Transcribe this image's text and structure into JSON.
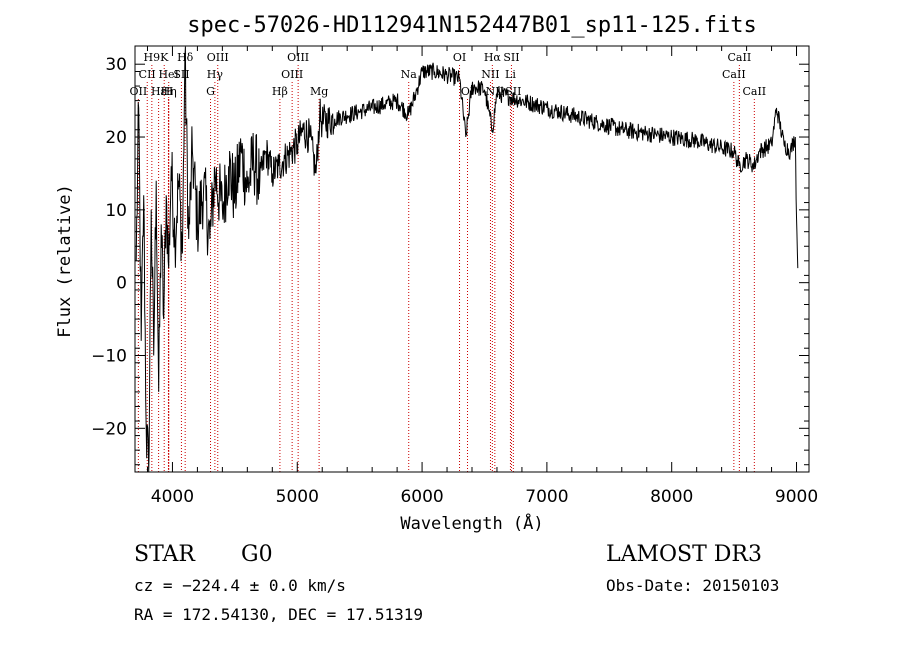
{
  "chart_data": {
    "type": "line",
    "title": "spec-57026-HD112941N152447B01_sp11-125.fits",
    "xlabel": "Wavelength (Å)",
    "ylabel": "Flux (relative)",
    "xlim": [
      3700,
      9100
    ],
    "ylim": [
      -26,
      32.5
    ],
    "xticks": [
      4000,
      5000,
      6000,
      7000,
      8000,
      9000
    ],
    "yticks": [
      -20,
      -10,
      0,
      10,
      20,
      30
    ],
    "series": [
      {
        "name": "flux",
        "x": [
          3710,
          3730,
          3750,
          3770,
          3790,
          3810,
          3830,
          3850,
          3870,
          3890,
          3910,
          3930,
          3950,
          3970,
          3990,
          4020,
          4050,
          4080,
          4100,
          4130,
          4160,
          4200,
          4250,
          4300,
          4340,
          4400,
          4450,
          4500,
          4550,
          4600,
          4650,
          4700,
          4750,
          4800,
          4850,
          4900,
          4950,
          5000,
          5050,
          5100,
          5150,
          5180,
          5200,
          5300,
          5400,
          5500,
          5600,
          5700,
          5800,
          5890,
          5950,
          6000,
          6100,
          6200,
          6300,
          6350,
          6400,
          6500,
          6563,
          6600,
          6700,
          6800,
          6900,
          7000,
          7100,
          7200,
          7400,
          7600,
          7800,
          8000,
          8200,
          8300,
          8400,
          8500,
          8540,
          8600,
          8660,
          8700,
          8800,
          8840,
          8900,
          8950,
          8990,
          9000,
          9010
        ],
        "y": [
          3,
          24,
          -8,
          12,
          -20,
          -26,
          10,
          -10,
          14,
          -15,
          8,
          -5,
          12,
          2,
          16,
          6,
          14,
          4,
          31,
          6,
          18,
          8,
          13,
          6,
          15,
          10,
          16,
          12,
          18,
          13,
          17,
          14,
          18,
          15,
          16,
          17,
          18,
          19,
          21,
          20,
          15,
          23,
          22,
          22.5,
          23,
          23.5,
          24,
          24.5,
          25,
          23,
          26,
          29,
          29,
          28.5,
          28,
          20,
          27,
          26.5,
          21,
          26,
          25.5,
          25,
          24.5,
          24,
          23.5,
          23,
          22,
          21,
          20.5,
          20,
          19.5,
          19,
          18.5,
          18,
          16,
          17,
          16,
          18,
          19,
          24,
          19,
          18,
          20,
          9,
          2
        ]
      }
    ],
    "line_markers": [
      {
        "label": "H9",
        "wavelength": 3835,
        "row": 0
      },
      {
        "label": "CII",
        "wavelength": 3798,
        "row": 1
      },
      {
        "label": "OII",
        "wavelength": 3727,
        "row": 2
      },
      {
        "label": "Hε",
        "wavelength": 3889,
        "row": 2
      },
      {
        "label": "K",
        "wavelength": 3934,
        "row": 0
      },
      {
        "label": "HeI",
        "wavelength": 3970,
        "row": 1
      },
      {
        "label": "Hη",
        "wavelength": 3970,
        "row": 2
      },
      {
        "label": "H",
        "wavelength": 3968,
        "row": 2
      },
      {
        "label": "Hδ",
        "wavelength": 4102,
        "row": 0
      },
      {
        "label": "SII",
        "wavelength": 4072,
        "row": 1
      },
      {
        "label": "OIII",
        "wavelength": 4363,
        "row": 0
      },
      {
        "label": "Hγ",
        "wavelength": 4340,
        "row": 1
      },
      {
        "label": "G",
        "wavelength": 4305,
        "row": 2
      },
      {
        "label": "OIII",
        "wavelength": 5007,
        "row": 0
      },
      {
        "label": "OIII",
        "wavelength": 4959,
        "row": 1
      },
      {
        "label": "Hβ",
        "wavelength": 4861,
        "row": 2
      },
      {
        "label": "Mg",
        "wavelength": 5175,
        "row": 2
      },
      {
        "label": "Na",
        "wavelength": 5893,
        "row": 1
      },
      {
        "label": "OI",
        "wavelength": 6300,
        "row": 0
      },
      {
        "label": "OI",
        "wavelength": 6364,
        "row": 2
      },
      {
        "label": "Hα",
        "wavelength": 6563,
        "row": 0
      },
      {
        "label": "NII",
        "wavelength": 6548,
        "row": 1
      },
      {
        "label": "NII",
        "wavelength": 6583,
        "row": 2
      },
      {
        "label": "SII",
        "wavelength": 6716,
        "row": 0
      },
      {
        "label": "Li",
        "wavelength": 6708,
        "row": 1
      },
      {
        "label": "SII",
        "wavelength": 6731,
        "row": 2
      },
      {
        "label": "CaII",
        "wavelength": 8542,
        "row": 0
      },
      {
        "label": "CaII",
        "wavelength": 8498,
        "row": 1
      },
      {
        "label": "CaII",
        "wavelength": 8662,
        "row": 2
      }
    ]
  },
  "info": {
    "object_class": "STAR",
    "subclass": "G0",
    "survey": "LAMOST DR3",
    "cz": "cz = −224.4 ± 0.0 km/s",
    "obs_date": "Obs-Date: 20150103",
    "coords": "RA = 172.54130, DEC =  17.51319"
  },
  "colors": {
    "spectrum": "#000000",
    "marker_lines": "#cc0000",
    "axes": "#000000",
    "background": "#ffffff"
  }
}
